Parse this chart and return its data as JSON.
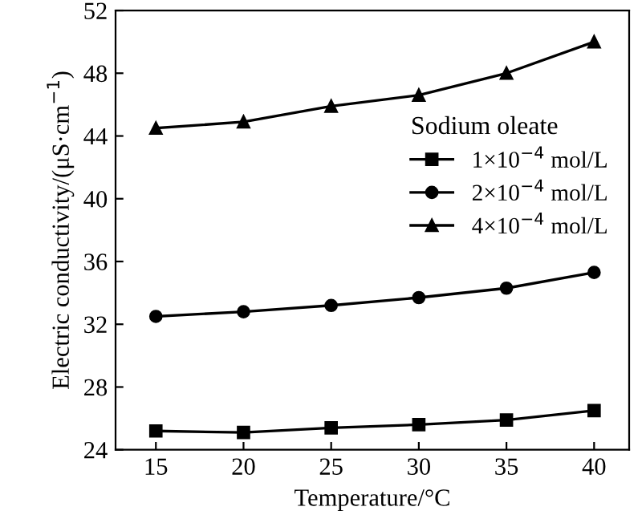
{
  "chart_data": {
    "type": "line",
    "xlabel": "Temperature/°C",
    "ylabel": "Electric conductivity/(μS·cm$^{−1}$)",
    "legend_title": "Sodium oleate",
    "x": [
      15,
      20,
      25,
      30,
      35,
      40
    ],
    "series": [
      {
        "name": "1×10$^{−4}$ mol/L",
        "color": "#000000",
        "marker": "square",
        "values": [
          25.2,
          25.1,
          25.4,
          25.6,
          25.9,
          26.5
        ]
      },
      {
        "name": "2×10$^{−4}$ mol/L",
        "color": "#000000",
        "marker": "circle",
        "values": [
          32.5,
          32.8,
          33.2,
          33.7,
          34.3,
          35.3
        ]
      },
      {
        "name": "4×10$^{−4}$ mol/L",
        "color": "#000000",
        "marker": "triangle",
        "values": [
          44.5,
          44.9,
          45.9,
          46.6,
          48.0,
          50.0
        ]
      }
    ],
    "xlim": [
      12.7,
      42
    ],
    "xticks": [
      15,
      20,
      25,
      30,
      35,
      40
    ],
    "ylim": [
      24,
      52
    ],
    "yticks": [
      24,
      28,
      32,
      36,
      40,
      44,
      48,
      52
    ],
    "grid": false,
    "legend": "right",
    "line_style": "solid"
  }
}
